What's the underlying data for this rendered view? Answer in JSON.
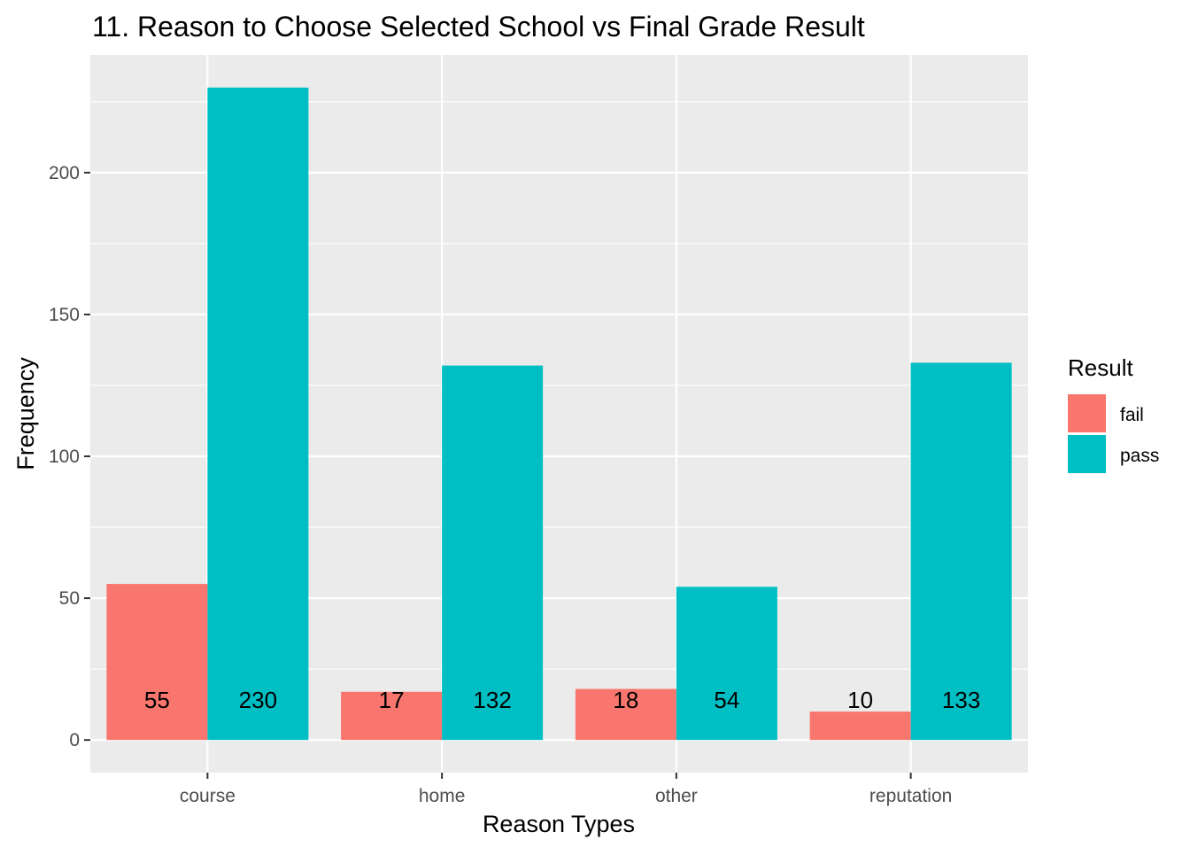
{
  "chart_data": {
    "type": "bar",
    "title": "11. Reason to Choose Selected School vs Final Grade Result",
    "xlabel": "Reason Types",
    "ylabel": "Frequency",
    "categories": [
      "course",
      "home",
      "other",
      "reputation"
    ],
    "series": [
      {
        "name": "fail",
        "values": [
          55,
          17,
          18,
          10
        ],
        "labels": [
          "55",
          "17",
          "18",
          "10"
        ],
        "color": "#F8766D"
      },
      {
        "name": "pass",
        "values": [
          230,
          132,
          54,
          133
        ],
        "labels": [
          "230",
          "132",
          "54",
          "133"
        ],
        "color": "#00BFC4"
      }
    ],
    "yticks": [
      0,
      50,
      100,
      150,
      200
    ],
    "ytick_labels": [
      "0",
      "50",
      "100",
      "150",
      "200"
    ],
    "ylim": [
      -11.5,
      241.5
    ],
    "grid": true,
    "legend": {
      "title": "Result",
      "position": "right"
    },
    "panel_background": "#EBEBEB",
    "grid_color": "#FFFFFF"
  }
}
